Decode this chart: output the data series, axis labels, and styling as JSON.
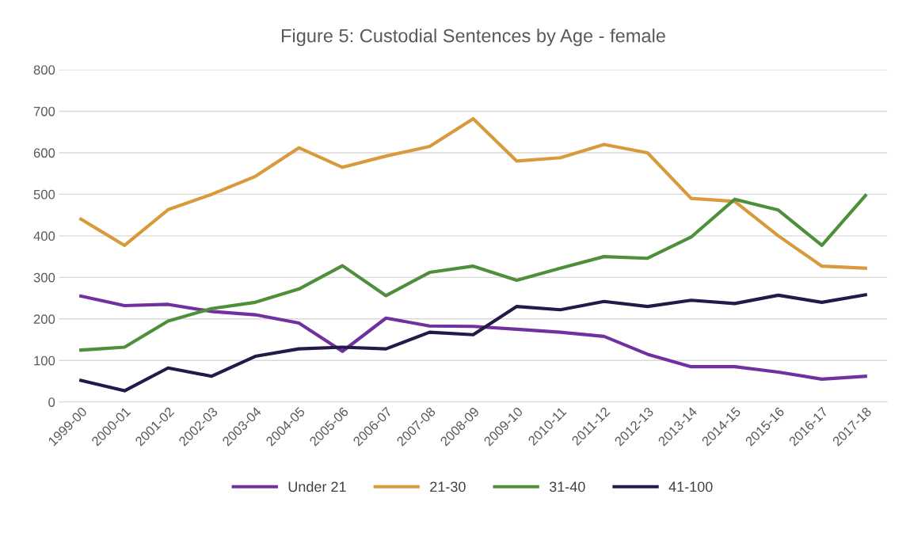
{
  "chart_data": {
    "type": "line",
    "title": "Figure 5: Custodial Sentences by Age - female",
    "categories": [
      "1999-00",
      "2000-01",
      "2001-02",
      "2002-03",
      "2003-04",
      "2004-05",
      "2005-06",
      "2006-07",
      "2007-08",
      "2008-09",
      "2009-10",
      "2010-11",
      "2011-12",
      "2012-13",
      "2013-14",
      "2014-15",
      "2015-16",
      "2016-17",
      "2017-18"
    ],
    "series": [
      {
        "name": "Under 21",
        "color": "#7030a0",
        "values": [
          255,
          232,
          235,
          218,
          210,
          190,
          122,
          202,
          183,
          182,
          175,
          168,
          158,
          115,
          85,
          85,
          72,
          55,
          62
        ]
      },
      {
        "name": "21-30",
        "color": "#d99a3c",
        "values": [
          440,
          377,
          463,
          500,
          543,
          612,
          565,
          592,
          615,
          682,
          580,
          588,
          620,
          600,
          490,
          483,
          400,
          327,
          322
        ]
      },
      {
        "name": "31-40",
        "color": "#4e8f3a",
        "values": [
          125,
          132,
          195,
          225,
          240,
          272,
          328,
          256,
          312,
          327,
          293,
          322,
          350,
          346,
          397,
          488,
          462,
          377,
          497
        ]
      },
      {
        "name": "41-100",
        "color": "#241a4a",
        "values": [
          52,
          27,
          82,
          62,
          110,
          128,
          132,
          128,
          168,
          162,
          230,
          222,
          242,
          230,
          245,
          237,
          257,
          240,
          258
        ]
      }
    ],
    "ylim": [
      0,
      800
    ],
    "yticks": [
      0,
      100,
      200,
      300,
      400,
      500,
      600,
      700,
      800
    ],
    "grid": "y",
    "legend": "bottom",
    "marker": "none",
    "line_style": "solid"
  }
}
